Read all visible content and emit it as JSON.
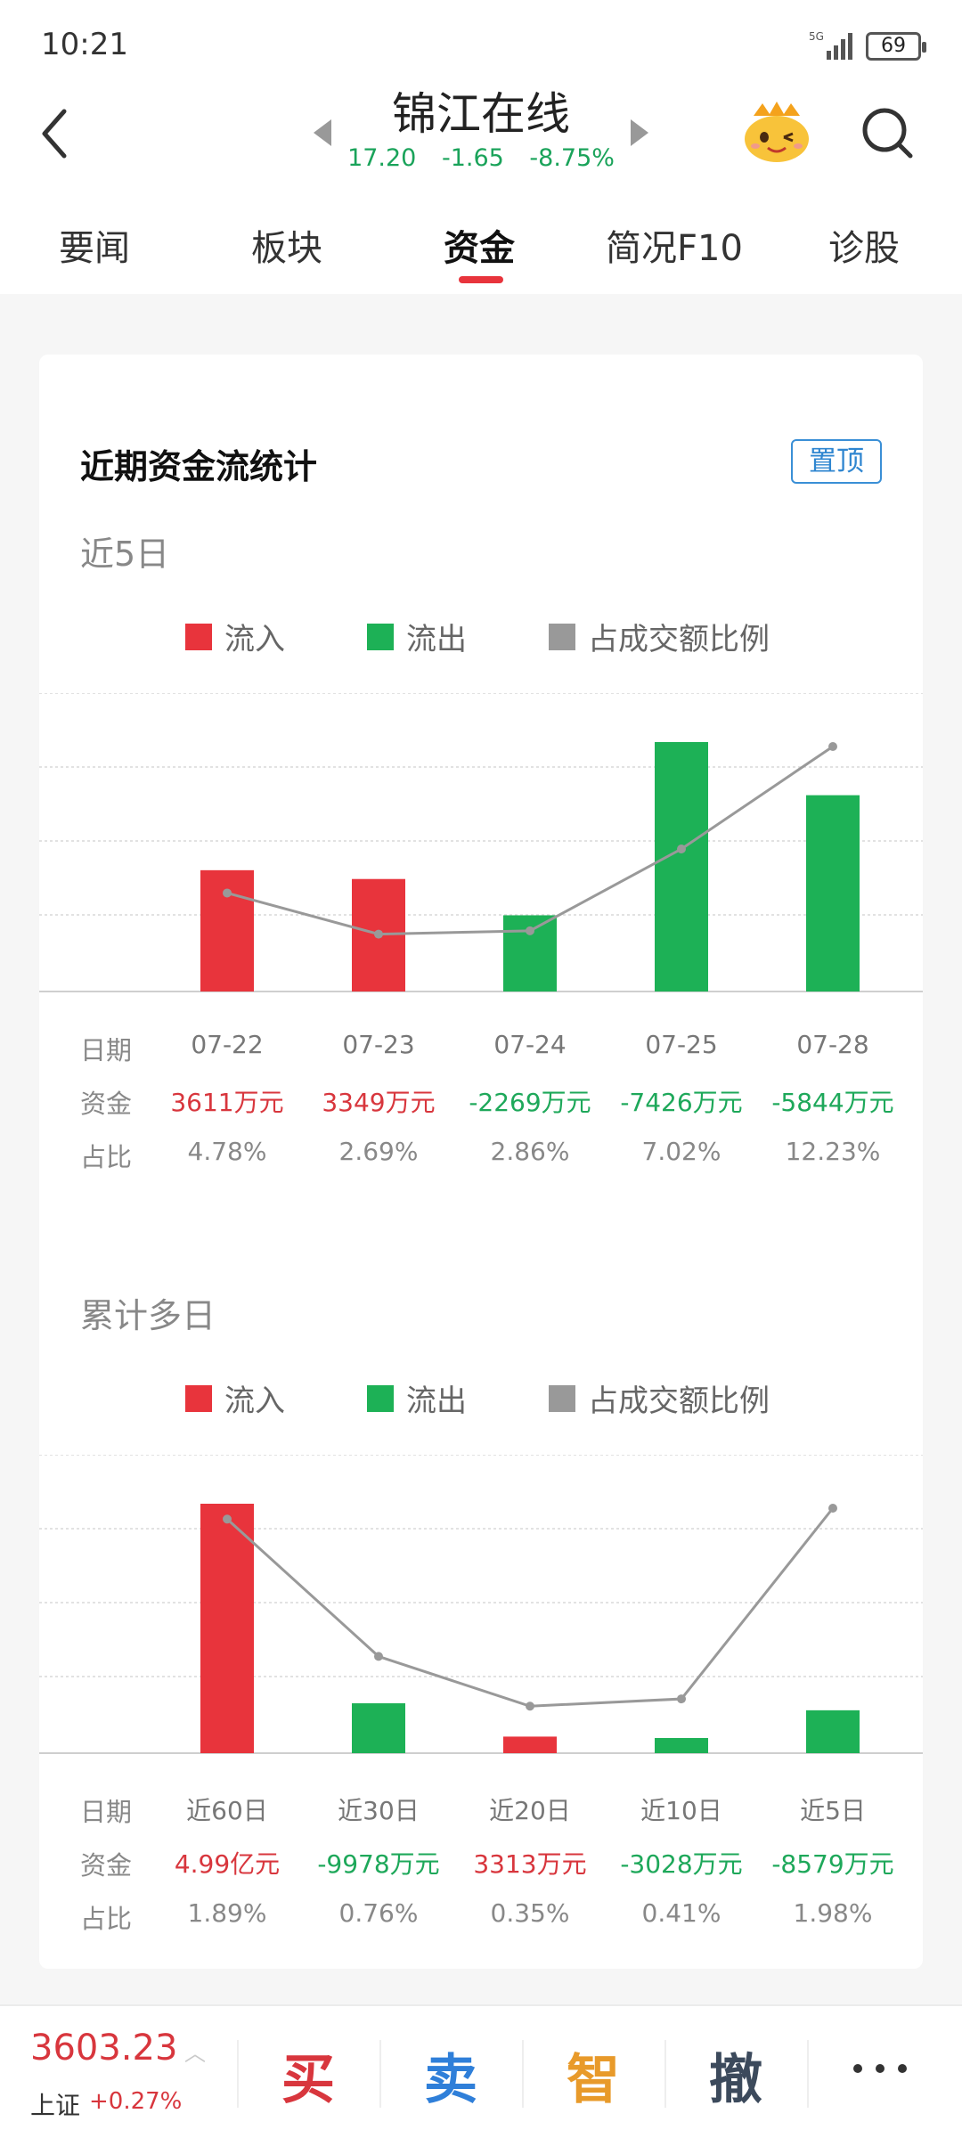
{
  "status": {
    "time": "10:21",
    "network": "5G",
    "battery": "69"
  },
  "header": {
    "stock_name": "锦江在线",
    "price": "17.20",
    "change": "-1.65",
    "change_pct": "-8.75%",
    "quote_color": "#1aa35a"
  },
  "tabs": [
    {
      "label": "要闻"
    },
    {
      "label": "板块"
    },
    {
      "label": "资金",
      "active": true
    },
    {
      "label": "简况F10"
    },
    {
      "label": "诊股"
    }
  ],
  "card": {
    "title": "近期资金流统计",
    "pin_label": "置顶"
  },
  "legend": {
    "inflow": "流入",
    "outflow": "流出",
    "ratio": "占成交额比例"
  },
  "row_heads": {
    "date": "日期",
    "fund": "资金",
    "pct": "占比"
  },
  "colors": {
    "inflow": "#e8343c",
    "outflow": "#1db156",
    "ratio": "#999999"
  },
  "chart_data": [
    {
      "type": "bar",
      "title": "近5日",
      "categories": [
        "07-22",
        "07-23",
        "07-24",
        "07-25",
        "07-28"
      ],
      "values_wan_yuan": [
        3611,
        3349,
        -2269,
        -7426,
        -5844
      ],
      "value_labels": [
        "3611万元",
        "3349万元",
        "-2269万元",
        "-7426万元",
        "-5844万元"
      ],
      "series": [
        {
          "name": "流入",
          "values": [
            3611,
            3349,
            0,
            0,
            0
          ]
        },
        {
          "name": "流出",
          "values": [
            0,
            0,
            2269,
            7426,
            5844
          ]
        }
      ],
      "ratio_series": {
        "name": "占成交额比例",
        "values": [
          4.78,
          2.69,
          2.86,
          7.02,
          12.23
        ]
      },
      "ratio_labels": [
        "4.78%",
        "2.69%",
        "2.86%",
        "7.02%",
        "12.23%"
      ],
      "grid": true
    },
    {
      "type": "bar",
      "title": "累计多日",
      "categories": [
        "近60日",
        "近30日",
        "近20日",
        "近10日",
        "近5日"
      ],
      "values_wan_yuan": [
        49900,
        -9978,
        3313,
        -3028,
        -8579
      ],
      "value_labels": [
        "4.99亿元",
        "-9978万元",
        "3313万元",
        "-3028万元",
        "-8579万元"
      ],
      "series": [
        {
          "name": "流入",
          "values": [
            49900,
            0,
            3313,
            0,
            0
          ]
        },
        {
          "name": "流出",
          "values": [
            0,
            9978,
            0,
            3028,
            8579
          ]
        }
      ],
      "ratio_series": {
        "name": "占成交额比例",
        "values": [
          1.89,
          0.76,
          0.35,
          0.41,
          1.98
        ]
      },
      "ratio_labels": [
        "1.89%",
        "0.76%",
        "0.35%",
        "0.41%",
        "1.98%"
      ],
      "grid": true
    }
  ],
  "bottom": {
    "index_value": "3603.23",
    "index_name": "上证",
    "index_change": "+0.27%",
    "actions": [
      {
        "label": "买",
        "color": "#d8363d"
      },
      {
        "label": "卖",
        "color": "#2f7fd9"
      },
      {
        "label": "智",
        "color": "#e89a2a"
      },
      {
        "label": "撤",
        "color": "#3c4a5c"
      }
    ]
  }
}
